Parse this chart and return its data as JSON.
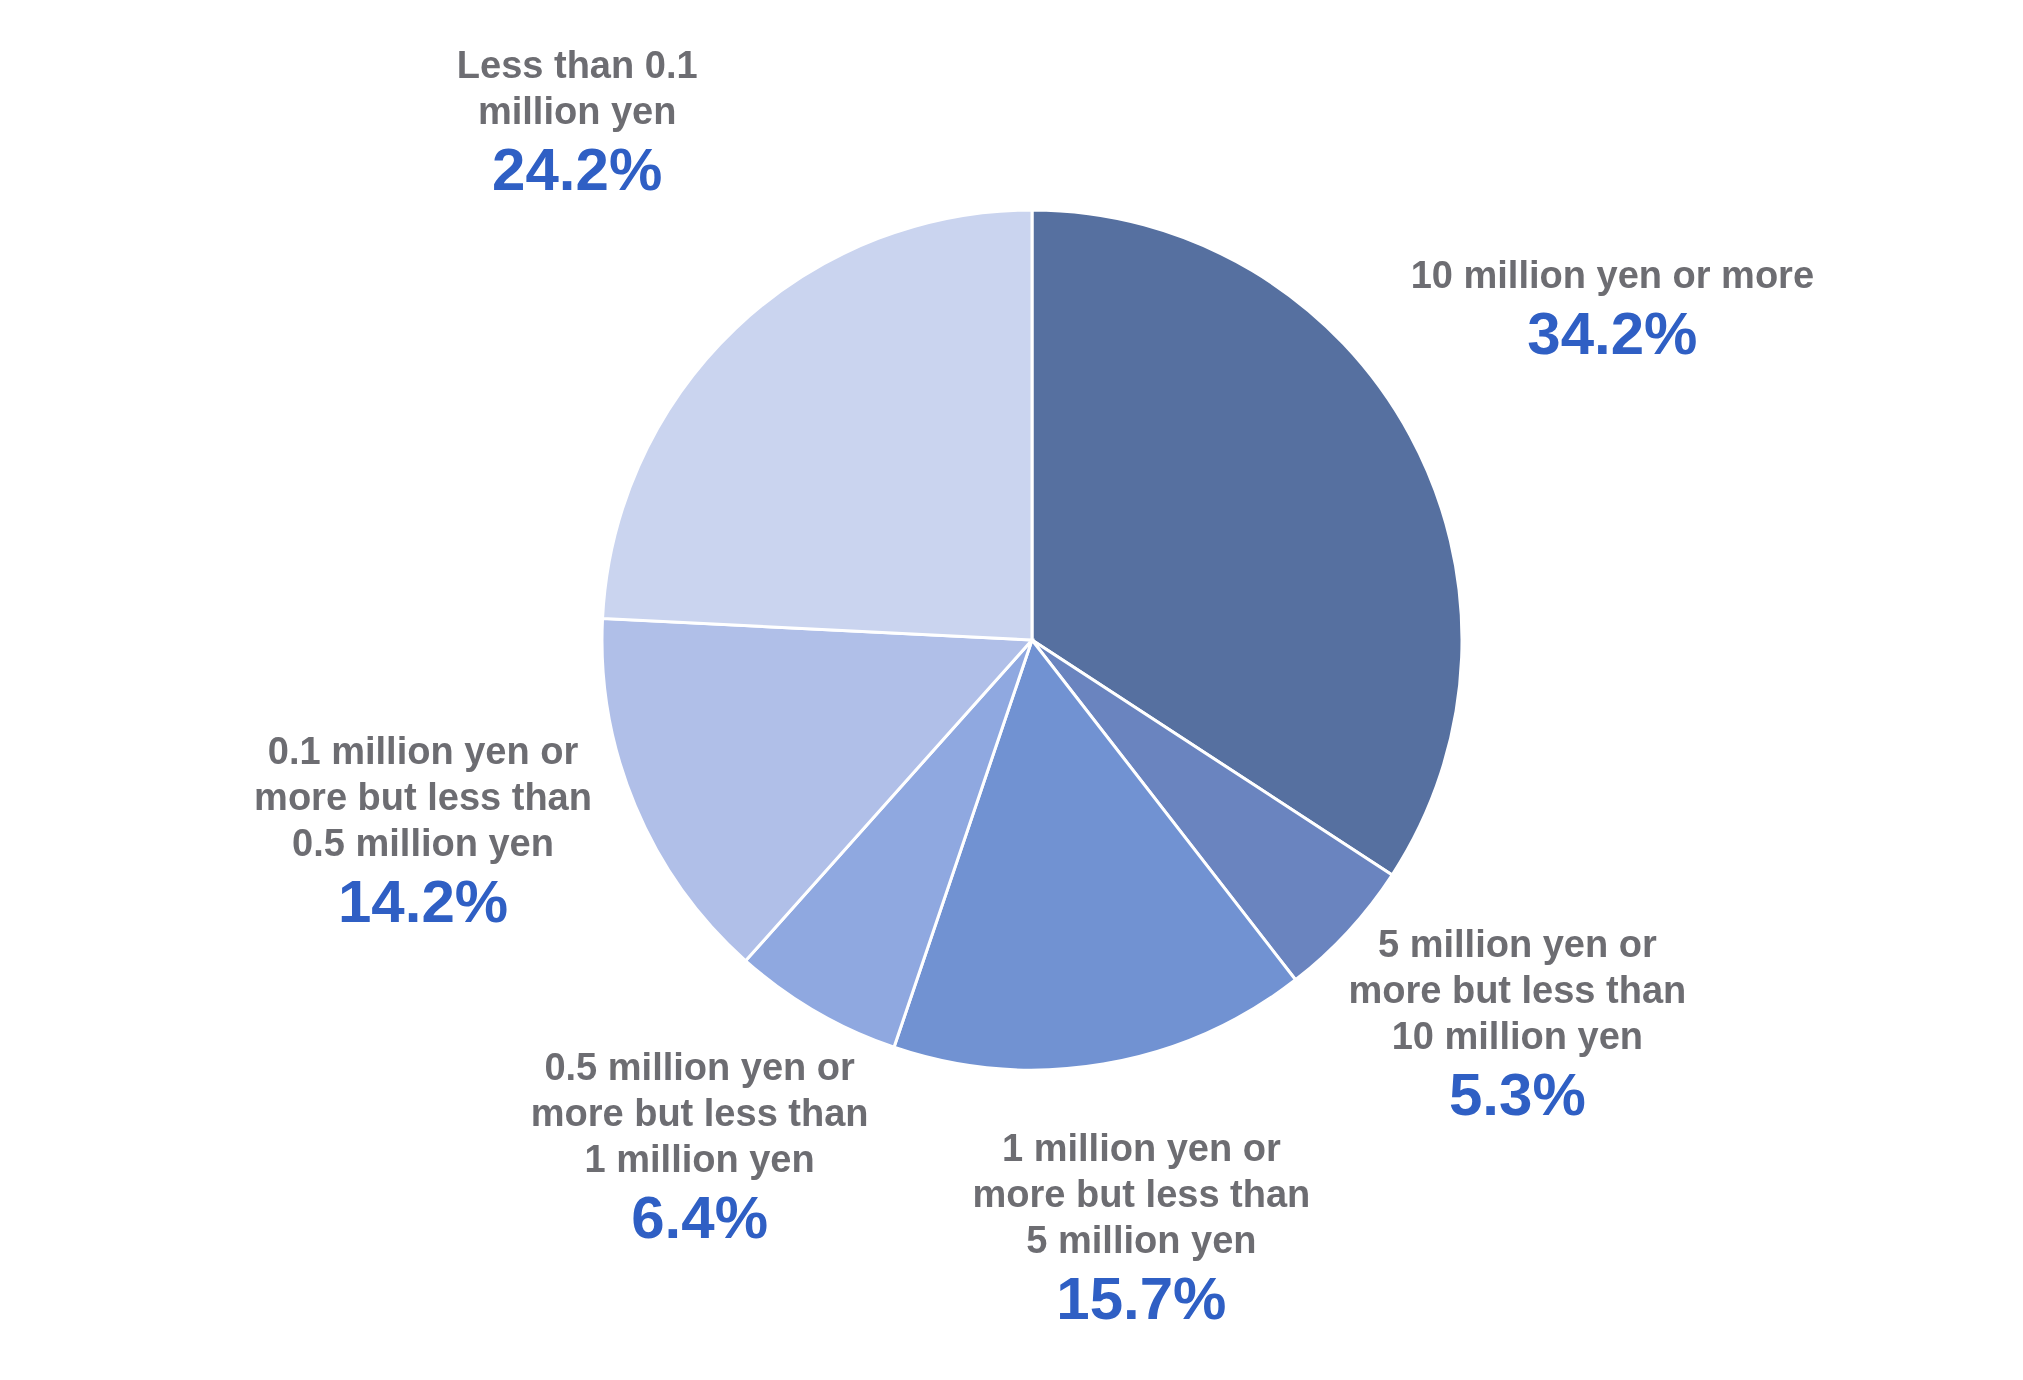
{
  "chart_data": {
    "type": "pie",
    "categories": [
      "10 million yen or more",
      "5 million yen or\nmore but less than\n10 million yen",
      "1 million yen or\nmore but less than\n5 million yen",
      "0.5 million yen or\nmore but less than\n1 million yen",
      "0.1 million yen or\nmore but less than\n0.5 million yen",
      "Less than 0.1\nmillion yen"
    ],
    "values": [
      34.2,
      5.3,
      15.7,
      6.4,
      14.2,
      24.2
    ],
    "colors": [
      "#5670a0",
      "#6a84bf",
      "#7192d2",
      "#8fa8e0",
      "#b0bfe8",
      "#cad4ef"
    ],
    "value_labels": [
      "34.2%",
      "5.3%",
      "15.7%",
      "6.4%",
      "14.2%",
      "24.2%"
    ]
  }
}
